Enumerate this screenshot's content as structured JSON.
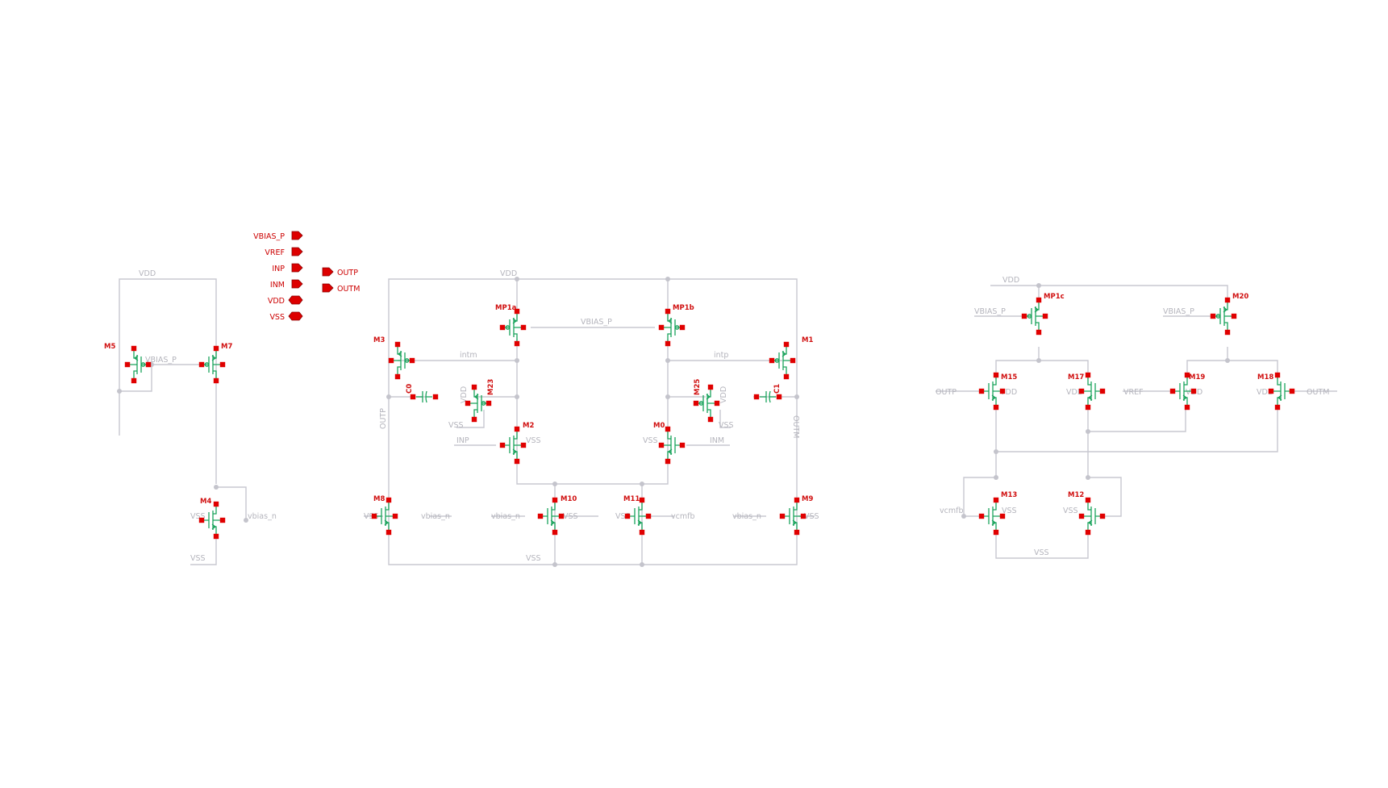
{
  "pins": {
    "inputs": [
      "VBIAS_P",
      "VREF",
      "INP",
      "INM"
    ],
    "outputs": [
      "OUTP",
      "OUTM"
    ],
    "inouts": [
      "VDD",
      "VSS"
    ]
  },
  "bias": {
    "vdd": "VDD",
    "vbias_p": "VBIAS_P",
    "m5": "M5",
    "m7": "M7",
    "m4": "M4",
    "m4_vss": "VSS",
    "m4_gate": "vbias_n",
    "vss_bottom": "VSS"
  },
  "core": {
    "vdd": "VDD",
    "vbias_p": "VBIAS_P",
    "mp1a": "MP1a",
    "mp1b": "MP1b",
    "m3": "M3",
    "m1": "M1",
    "intm": "intm",
    "intp": "intp",
    "c0": "C0",
    "c1": "C1",
    "m23": "M23",
    "m25": "M25",
    "m23_vdd": "VDD",
    "m23_vss": "VSS",
    "m25_vdd": "VDD",
    "m25_vss": "VSS",
    "m2": "M2",
    "m0": "M0",
    "inp": "INP",
    "inm": "INM",
    "m2_vss": "VSS",
    "m0_vss": "VSS",
    "outp": "OUTP",
    "outm": "OUTM",
    "m8": "M8",
    "m10": "M10",
    "m11": "M11",
    "m9": "M9",
    "m8_vss": "VSS",
    "m8_gate": "vbias_n",
    "m10_gate": "vbias_n",
    "m10_vss": "VSS",
    "m11_vss": "VSS",
    "m11_gate": "vcmfb",
    "m9_gate": "vbias_n",
    "m9_vss": "VSS",
    "vss_bottom": "VSS"
  },
  "cmfb": {
    "vdd": "VDD",
    "mp1c": "MP1c",
    "m20": "M20",
    "vbias_p_left": "VBIAS_P",
    "vbias_p_right": "VBIAS_P",
    "m15": "M15",
    "m17": "M17",
    "m19": "M19",
    "m18": "M18",
    "outp": "OUTP",
    "outm": "OUTM",
    "vref": "VREF",
    "m15_vdd": "VDD",
    "m17_vdd": "VDD",
    "m19_vdd": "VDD",
    "m18_vdd": "VDD",
    "m13": "M13",
    "m12": "M12",
    "vcmfb": "vcmfb",
    "m13_vss": "VSS",
    "m12_vss": "VSS",
    "vss_bottom": "VSS"
  },
  "colors": {
    "wire": "#c8c8d0",
    "device": "#1aa35c",
    "pin": "#e00000",
    "label": "#d01010"
  }
}
